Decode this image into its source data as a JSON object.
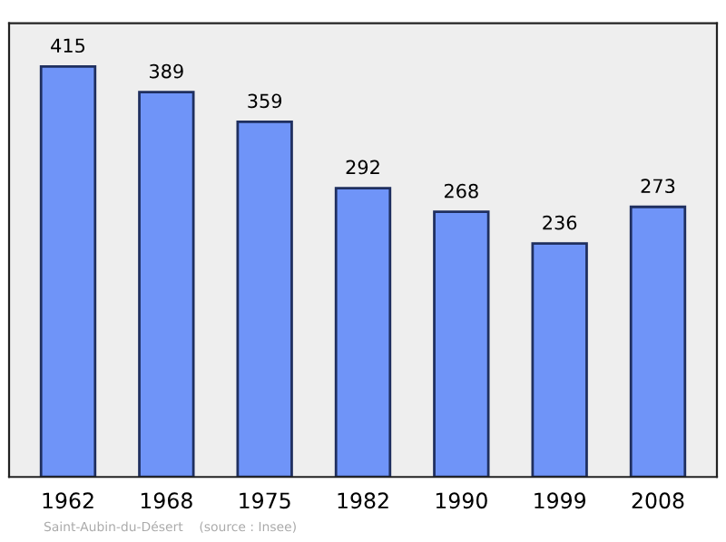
{
  "chart_data": {
    "type": "bar",
    "categories": [
      "1962",
      "1968",
      "1975",
      "1982",
      "1990",
      "1999",
      "2008"
    ],
    "values": [
      415,
      389,
      359,
      292,
      268,
      236,
      273
    ],
    "color": "#6f94f8",
    "data_labels": true,
    "grid": false,
    "legend": false,
    "annotations": [
      "Saint-Aubin-du-Désert    (source : Insee)"
    ]
  }
}
